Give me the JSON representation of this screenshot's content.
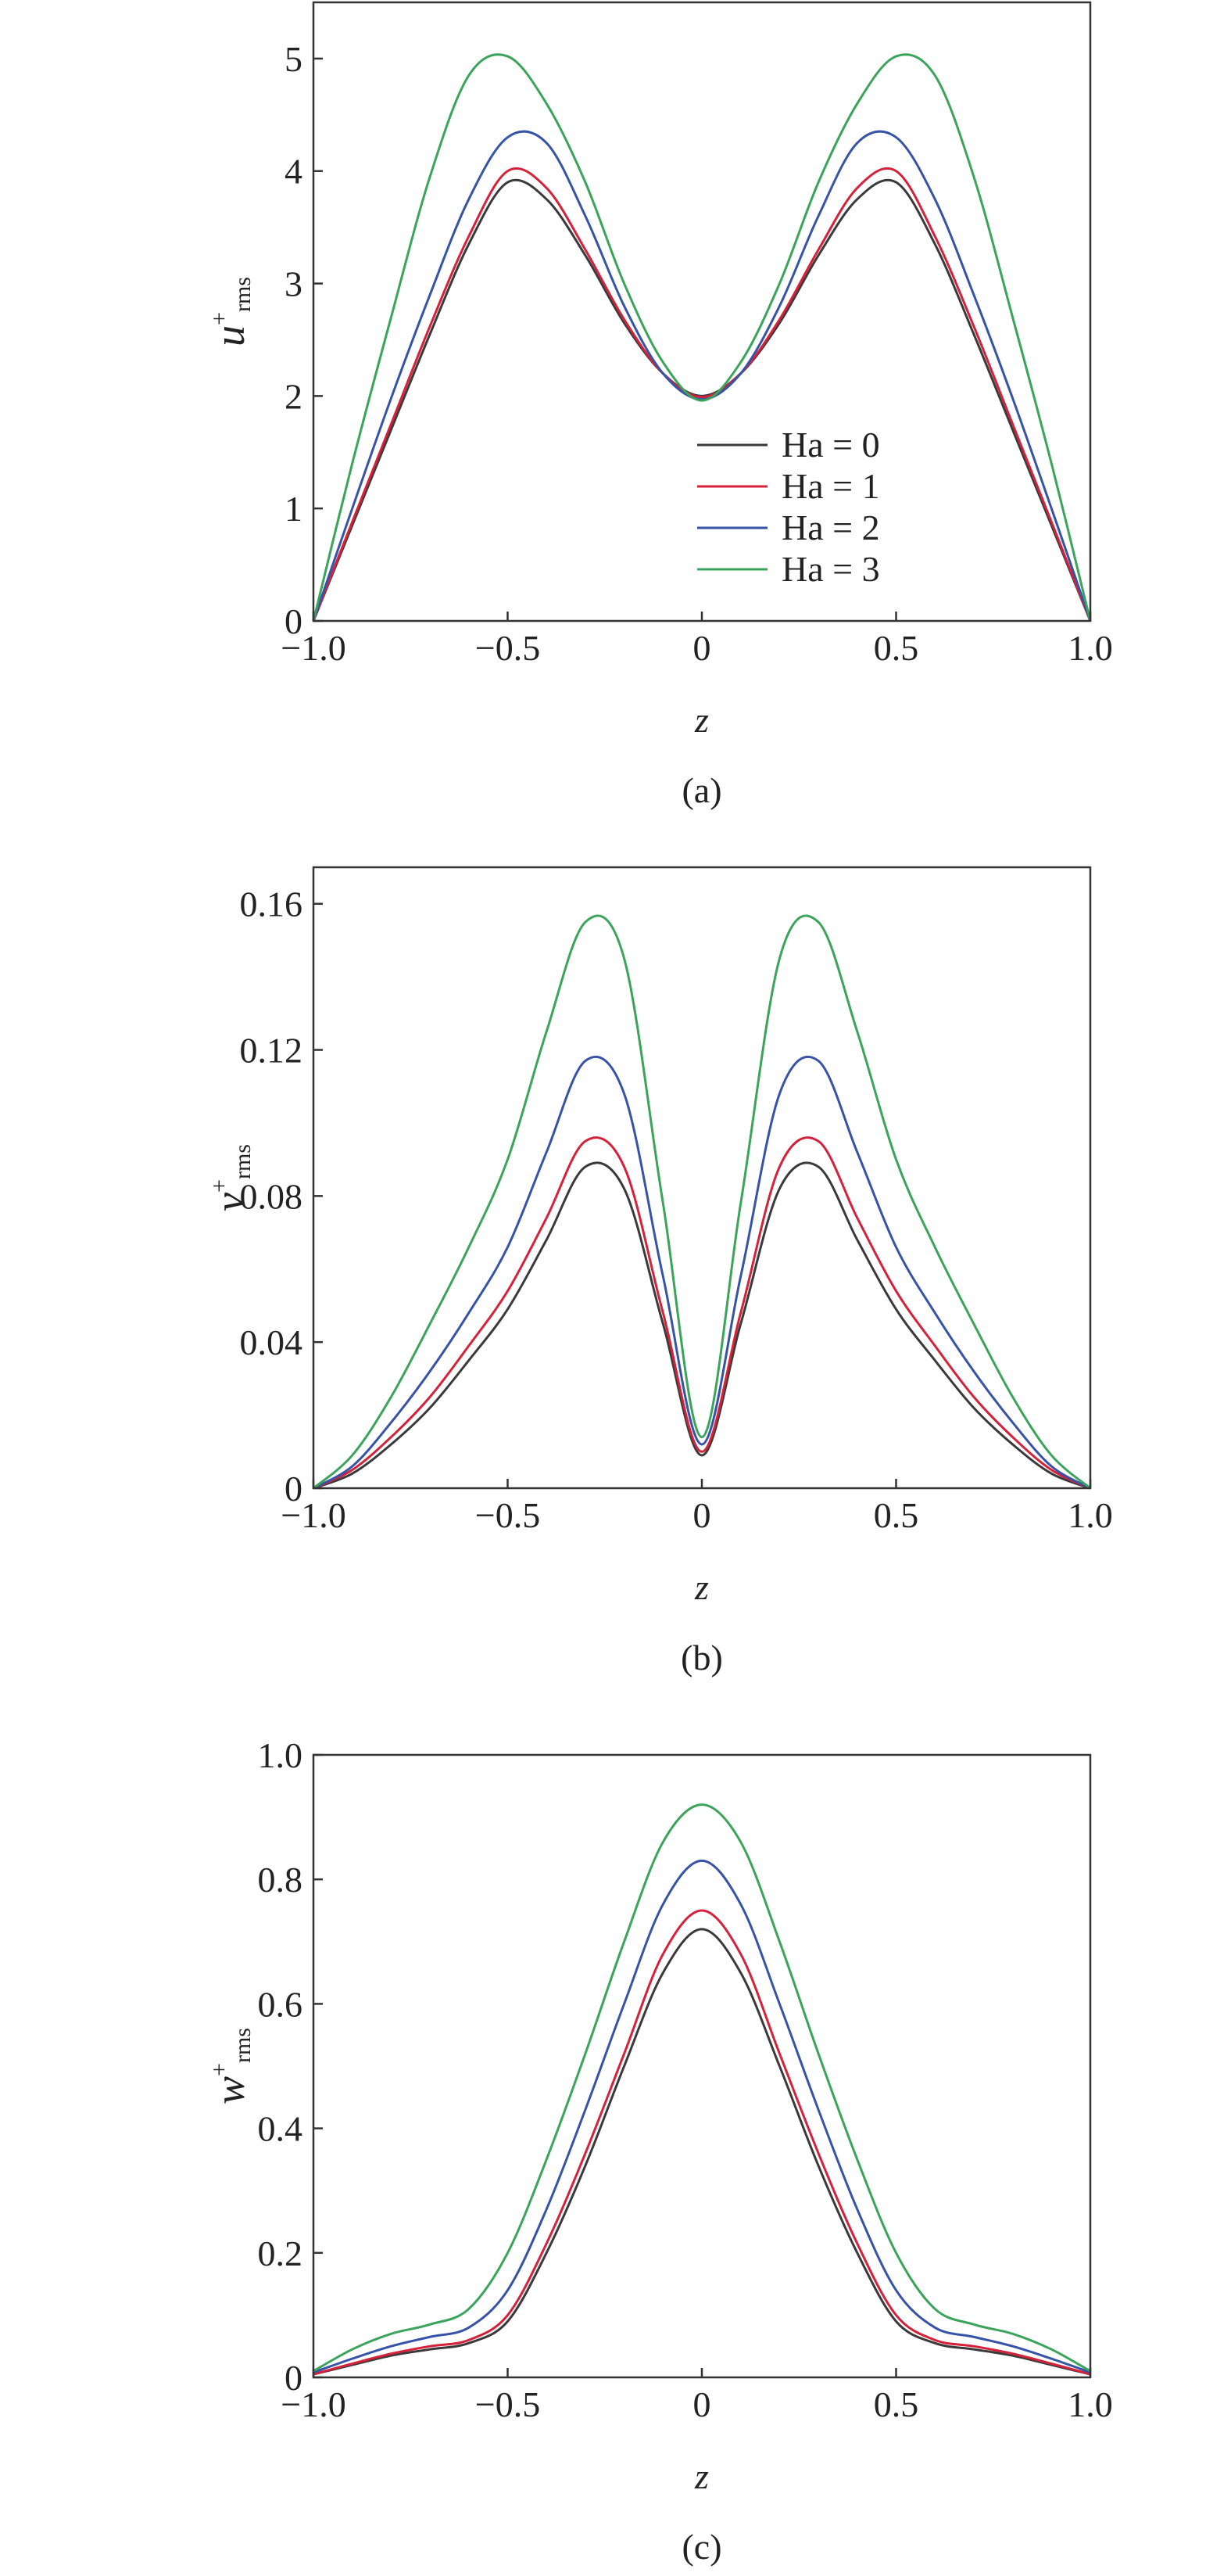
{
  "chart_data": [
    {
      "type": "line",
      "ylabel_symbol": "u",
      "ylabel_sup": "+",
      "ylabel_sub": "rms",
      "xlabel": "z",
      "caption": "(a)",
      "x": [
        -1,
        -0.9,
        -0.8,
        -0.7,
        -0.6,
        -0.5,
        -0.4,
        -0.3,
        -0.2,
        -0.1,
        0,
        0.1,
        0.2,
        0.3,
        0.4,
        0.5,
        0.6,
        0.7,
        0.8,
        0.9,
        1
      ],
      "series": [
        {
          "name": "Ha = 0",
          "color": "#3a3a3a",
          "values": [
            0,
            0.85,
            1.7,
            2.55,
            3.35,
            3.9,
            3.75,
            3.25,
            2.65,
            2.2,
            2.0,
            2.2,
            2.65,
            3.25,
            3.75,
            3.9,
            3.35,
            2.55,
            1.7,
            0.85,
            0
          ]
        },
        {
          "name": "Ha = 1",
          "color": "#d6213a",
          "values": [
            0,
            0.88,
            1.75,
            2.62,
            3.42,
            4.0,
            3.85,
            3.3,
            2.68,
            2.2,
            1.99,
            2.2,
            2.68,
            3.3,
            3.85,
            4.0,
            3.42,
            2.62,
            1.75,
            0.88,
            0
          ]
        },
        {
          "name": "Ha = 2",
          "color": "#3653a8",
          "values": [
            0,
            1.0,
            1.98,
            2.9,
            3.75,
            4.3,
            4.25,
            3.6,
            2.8,
            2.2,
            1.97,
            2.2,
            2.8,
            3.6,
            4.25,
            4.3,
            3.75,
            2.9,
            1.98,
            1.0,
            0
          ]
        },
        {
          "name": "Ha = 3",
          "color": "#3aa45a",
          "values": [
            0,
            1.4,
            2.7,
            3.95,
            4.85,
            5.02,
            4.6,
            3.9,
            3.0,
            2.3,
            1.96,
            2.3,
            3.0,
            3.9,
            4.6,
            5.02,
            4.85,
            3.95,
            2.7,
            1.4,
            0
          ]
        }
      ],
      "legend": "lower right",
      "xlim": [
        -1,
        1
      ],
      "ylim": [
        0,
        5.5
      ],
      "xticks": [
        {
          "value": -1,
          "label": "−1.0"
        },
        {
          "value": -0.5,
          "label": "−0.5"
        },
        0,
        0.5,
        {
          "value": 1,
          "label": "1.0"
        }
      ],
      "yticks": [
        0,
        1,
        2,
        3,
        4,
        5
      ]
    },
    {
      "type": "line",
      "ylabel_symbol": "v",
      "ylabel_sup": "+",
      "ylabel_sub": "rms",
      "xlabel": "z",
      "caption": "(b)",
      "x": [
        -1,
        -0.9,
        -0.8,
        -0.7,
        -0.6,
        -0.5,
        -0.4,
        -0.3,
        -0.2,
        -0.1,
        0,
        0.1,
        0.2,
        0.3,
        0.4,
        0.5,
        0.6,
        0.7,
        0.8,
        0.9,
        1
      ],
      "series": [
        {
          "color": "#3a3a3a",
          "values": [
            0,
            0.004,
            0.012,
            0.022,
            0.035,
            0.049,
            0.068,
            0.088,
            0.082,
            0.045,
            0.009,
            0.045,
            0.082,
            0.088,
            0.068,
            0.049,
            0.035,
            0.022,
            0.012,
            0.004,
            0
          ]
        },
        {
          "color": "#d6213a",
          "values": [
            0,
            0.005,
            0.014,
            0.025,
            0.039,
            0.054,
            0.074,
            0.095,
            0.088,
            0.048,
            0.01,
            0.048,
            0.088,
            0.095,
            0.074,
            0.054,
            0.039,
            0.025,
            0.014,
            0.005,
            0
          ]
        },
        {
          "color": "#3653a8",
          "values": [
            0,
            0.006,
            0.018,
            0.032,
            0.048,
            0.066,
            0.092,
            0.117,
            0.108,
            0.058,
            0.012,
            0.058,
            0.108,
            0.117,
            0.092,
            0.066,
            0.048,
            0.032,
            0.018,
            0.006,
            0
          ]
        },
        {
          "color": "#3aa45a",
          "values": [
            0,
            0.009,
            0.025,
            0.045,
            0.066,
            0.09,
            0.125,
            0.155,
            0.145,
            0.078,
            0.014,
            0.078,
            0.145,
            0.155,
            0.125,
            0.09,
            0.066,
            0.045,
            0.025,
            0.009,
            0
          ]
        }
      ],
      "xlim": [
        -1,
        1
      ],
      "ylim": [
        0,
        0.17
      ],
      "xticks": [
        {
          "value": -1,
          "label": "−1.0"
        },
        {
          "value": -0.5,
          "label": "−0.5"
        },
        0,
        0.5,
        {
          "value": 1,
          "label": "1.0"
        }
      ],
      "yticks": [
        0,
        0.04,
        0.08,
        0.12,
        0.16
      ]
    },
    {
      "type": "line",
      "ylabel_symbol": "w",
      "ylabel_sup": "+",
      "ylabel_sub": "rms",
      "xlabel": "z",
      "caption": "(c)",
      "x": [
        -1,
        -0.9,
        -0.8,
        -0.7,
        -0.6,
        -0.5,
        -0.4,
        -0.3,
        -0.2,
        -0.1,
        0,
        0.1,
        0.2,
        0.3,
        0.4,
        0.5,
        0.6,
        0.7,
        0.8,
        0.9,
        1
      ],
      "series": [
        {
          "color": "#3a3a3a",
          "values": [
            0.005,
            0.02,
            0.035,
            0.045,
            0.055,
            0.09,
            0.2,
            0.34,
            0.5,
            0.65,
            0.72,
            0.65,
            0.5,
            0.34,
            0.2,
            0.09,
            0.055,
            0.045,
            0.035,
            0.02,
            0.005
          ]
        },
        {
          "color": "#d6213a",
          "values": [
            0.005,
            0.022,
            0.038,
            0.05,
            0.06,
            0.1,
            0.215,
            0.36,
            0.52,
            0.68,
            0.75,
            0.68,
            0.52,
            0.36,
            0.215,
            0.1,
            0.06,
            0.05,
            0.038,
            0.022,
            0.005
          ]
        },
        {
          "color": "#3653a8",
          "values": [
            0.008,
            0.03,
            0.05,
            0.065,
            0.08,
            0.14,
            0.27,
            0.43,
            0.6,
            0.76,
            0.83,
            0.76,
            0.6,
            0.43,
            0.27,
            0.14,
            0.08,
            0.065,
            0.05,
            0.03,
            0.008
          ]
        },
        {
          "color": "#3aa45a",
          "values": [
            0.01,
            0.045,
            0.07,
            0.085,
            0.11,
            0.2,
            0.35,
            0.52,
            0.7,
            0.86,
            0.92,
            0.86,
            0.7,
            0.52,
            0.35,
            0.2,
            0.11,
            0.085,
            0.07,
            0.045,
            0.01
          ]
        }
      ],
      "xlim": [
        -1,
        1
      ],
      "ylim": [
        0,
        1
      ],
      "xticks": [
        {
          "value": -1,
          "label": "−1.0"
        },
        {
          "value": -0.5,
          "label": "−0.5"
        },
        0,
        0.5,
        {
          "value": 1,
          "label": "1.0"
        }
      ],
      "yticks": [
        0,
        0.2,
        0.4,
        0.6,
        0.8,
        {
          "value": 1,
          "label": "1.0"
        }
      ]
    }
  ]
}
